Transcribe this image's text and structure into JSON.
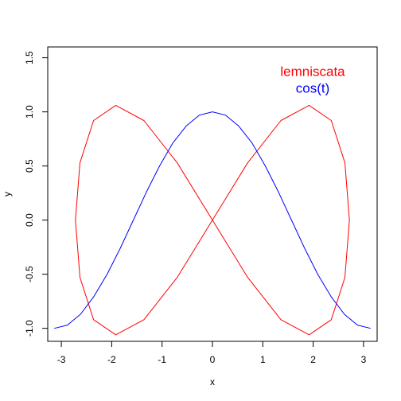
{
  "chart_data": {
    "type": "line",
    "xlabel": "x",
    "ylabel": "y",
    "xlim": [
      -3.27,
      3.27
    ],
    "ylim": [
      -1.12,
      1.6
    ],
    "xticks": [
      -3,
      -2,
      -1,
      0,
      1,
      2,
      3
    ],
    "yticks": [
      -1.0,
      -0.5,
      0.0,
      0.5,
      1.0,
      1.5
    ],
    "ytick_labels": [
      "-1.0",
      "-0.5",
      "0.0",
      "0.5",
      "1.0",
      "1.5"
    ],
    "legend": "top-right",
    "series": [
      {
        "name": "lemniscata",
        "color": "#ff0000",
        "x": [
          2.72,
          2.63,
          2.36,
          1.92,
          1.36,
          0.7,
          0,
          -0.7,
          -1.36,
          -1.92,
          -2.36,
          -2.63,
          -2.72,
          -2.63,
          -2.36,
          -1.92,
          -1.36,
          -0.7,
          0,
          0.7,
          1.36,
          1.92,
          2.36,
          2.63,
          2.72
        ],
        "values": [
          0,
          0.53,
          0.92,
          1.06,
          0.92,
          0.53,
          0,
          -0.53,
          -0.92,
          -1.06,
          -0.92,
          -0.53,
          0,
          0.53,
          0.92,
          1.06,
          0.92,
          0.53,
          0,
          -0.53,
          -0.92,
          -1.06,
          -0.92,
          -0.53,
          0
        ]
      },
      {
        "name": "cos(t)",
        "color": "#0000ff",
        "x": [
          -3.14,
          -2.88,
          -2.62,
          -2.36,
          -2.09,
          -1.83,
          -1.57,
          -1.31,
          -1.05,
          -0.79,
          -0.52,
          -0.26,
          0,
          0.26,
          0.52,
          0.79,
          1.05,
          1.31,
          1.57,
          1.83,
          2.09,
          2.36,
          2.62,
          2.88,
          3.14
        ],
        "values": [
          -1,
          -0.97,
          -0.87,
          -0.71,
          -0.5,
          -0.26,
          0,
          0.26,
          0.5,
          0.71,
          0.87,
          0.97,
          1,
          0.97,
          0.87,
          0.71,
          0.5,
          0.26,
          0,
          -0.26,
          -0.5,
          -0.71,
          -0.87,
          -0.97,
          -1
        ]
      }
    ]
  }
}
